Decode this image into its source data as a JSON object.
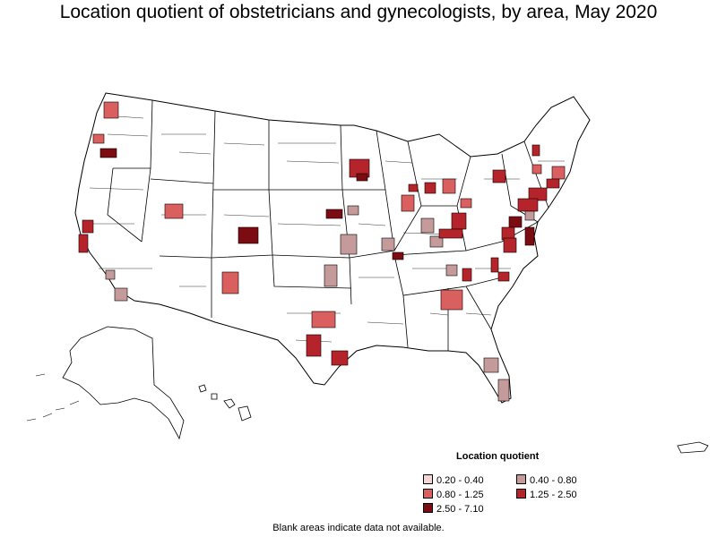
{
  "title": "Location quotient of obstetricians and gynecologists, by area, May 2020",
  "legend": {
    "title": "Location quotient",
    "items": [
      {
        "label": "0.20 - 0.40",
        "color": "#f4d6d6"
      },
      {
        "label": "0.40 - 0.80",
        "color": "#c49a9a"
      },
      {
        "label": "0.80 - 1.25",
        "color": "#d9605f"
      },
      {
        "label": "1.25 - 2.50",
        "color": "#b5242a"
      },
      {
        "label": "2.50 - 7.10",
        "color": "#7a0c12"
      }
    ]
  },
  "footnote": "Blank areas indicate data not available."
}
